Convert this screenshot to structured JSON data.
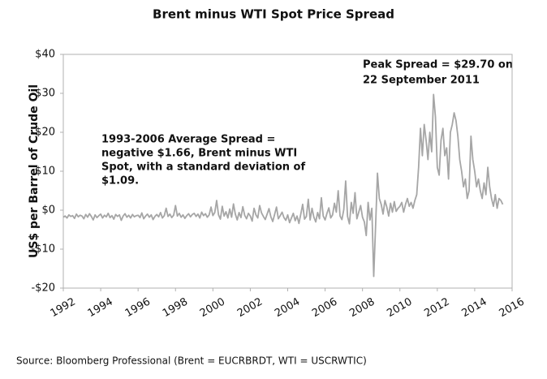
{
  "chart_data": {
    "type": "line",
    "title": "Brent minus WTI Spot Price Spread",
    "ylabel": "US$ per Barrel of Crude Oil",
    "source": "Source: Bloomberg Professional (Brent = EUCRBRDT, WTI = USCRWTIC)",
    "annotations": [
      "Peak Spread = $29.70 on",
      "22 September 2011",
      "1993-2006 Average Spread =",
      "negative $1.66, Brent minus WTI",
      "Spot, with a standard deviation of",
      "$1.09."
    ],
    "xlim": [
      1992,
      2016
    ],
    "xticks": [
      1992,
      1994,
      1996,
      1998,
      2000,
      2002,
      2004,
      2006,
      2008,
      2010,
      2012,
      2014,
      2016
    ],
    "ylim": [
      -20,
      40
    ],
    "yticks": [
      {
        "value": 40,
        "label": "$40"
      },
      {
        "value": 30,
        "label": "$30"
      },
      {
        "value": 20,
        "label": "$20"
      },
      {
        "value": 10,
        "label": "$10"
      },
      {
        "value": 0,
        "label": "$0"
      },
      {
        "value": -10,
        "label": "-$10"
      },
      {
        "value": -20,
        "label": "-$20"
      }
    ],
    "grid": false,
    "x": [
      1992.0,
      1992.1,
      1992.2,
      1992.3,
      1992.4,
      1992.5,
      1992.6,
      1992.7,
      1992.8,
      1992.9,
      1993.0,
      1993.1,
      1993.2,
      1993.3,
      1993.4,
      1993.5,
      1993.6,
      1993.7,
      1993.8,
      1993.9,
      1994.0,
      1994.1,
      1994.2,
      1994.3,
      1994.4,
      1994.5,
      1994.6,
      1994.7,
      1994.8,
      1994.9,
      1995.0,
      1995.1,
      1995.2,
      1995.3,
      1995.4,
      1995.5,
      1995.6,
      1995.7,
      1995.8,
      1995.9,
      1996.0,
      1996.1,
      1996.2,
      1996.3,
      1996.4,
      1996.5,
      1996.6,
      1996.7,
      1996.8,
      1996.9,
      1997.0,
      1997.1,
      1997.2,
      1997.3,
      1997.4,
      1997.5,
      1997.6,
      1997.7,
      1997.8,
      1997.9,
      1998.0,
      1998.1,
      1998.2,
      1998.3,
      1998.4,
      1998.5,
      1998.6,
      1998.7,
      1998.8,
      1998.9,
      1999.0,
      1999.1,
      1999.2,
      1999.3,
      1999.4,
      1999.5,
      1999.6,
      1999.7,
      1999.8,
      1999.9,
      2000.0,
      2000.1,
      2000.2,
      2000.3,
      2000.4,
      2000.5,
      2000.6,
      2000.7,
      2000.8,
      2000.9,
      2001.0,
      2001.1,
      2001.2,
      2001.3,
      2001.4,
      2001.5,
      2001.6,
      2001.7,
      2001.8,
      2001.9,
      2002.0,
      2002.1,
      2002.2,
      2002.3,
      2002.4,
      2002.5,
      2002.6,
      2002.7,
      2002.8,
      2002.9,
      2003.0,
      2003.1,
      2003.2,
      2003.3,
      2003.4,
      2003.5,
      2003.6,
      2003.7,
      2003.8,
      2003.9,
      2004.0,
      2004.1,
      2004.2,
      2004.3,
      2004.4,
      2004.5,
      2004.6,
      2004.7,
      2004.8,
      2004.9,
      2005.0,
      2005.1,
      2005.2,
      2005.3,
      2005.4,
      2005.5,
      2005.6,
      2005.7,
      2005.8,
      2005.9,
      2006.0,
      2006.1,
      2006.2,
      2006.3,
      2006.4,
      2006.5,
      2006.6,
      2006.7,
      2006.8,
      2006.9,
      2007.0,
      2007.1,
      2007.2,
      2007.3,
      2007.4,
      2007.5,
      2007.6,
      2007.7,
      2007.8,
      2007.9,
      2008.0,
      2008.1,
      2008.2,
      2008.3,
      2008.4,
      2008.5,
      2008.6,
      2008.7,
      2008.8,
      2008.9,
      2009.0,
      2009.1,
      2009.2,
      2009.3,
      2009.4,
      2009.5,
      2009.6,
      2009.7,
      2009.8,
      2009.9,
      2010.0,
      2010.1,
      2010.2,
      2010.3,
      2010.4,
      2010.5,
      2010.6,
      2010.7,
      2010.8,
      2010.9,
      2011.0,
      2011.1,
      2011.2,
      2011.3,
      2011.4,
      2011.5,
      2011.6,
      2011.7,
      2011.8,
      2011.9,
      2012.0,
      2012.1,
      2012.2,
      2012.3,
      2012.4,
      2012.5,
      2012.6,
      2012.7,
      2012.8,
      2012.9,
      2013.0,
      2013.1,
      2013.2,
      2013.3,
      2013.4,
      2013.5,
      2013.6,
      2013.7,
      2013.8,
      2013.9,
      2014.0,
      2014.1,
      2014.2,
      2014.3,
      2014.4,
      2014.5,
      2014.6,
      2014.7,
      2014.8,
      2014.9,
      2015.0,
      2015.1,
      2015.2,
      2015.3,
      2015.4,
      2015.5
    ],
    "series": [
      {
        "name": "Brent minus WTI",
        "color": "#a6a6a6",
        "values": [
          -1.8,
          -1.5,
          -2.0,
          -1.2,
          -1.6,
          -1.4,
          -2.1,
          -1.0,
          -1.7,
          -1.3,
          -1.5,
          -2.2,
          -1.1,
          -1.8,
          -0.9,
          -1.6,
          -2.5,
          -1.2,
          -1.9,
          -1.4,
          -1.0,
          -2.0,
          -1.3,
          -1.7,
          -0.8,
          -1.9,
          -1.4,
          -2.3,
          -1.1,
          -1.6,
          -1.2,
          -2.6,
          -1.5,
          -0.9,
          -1.8,
          -1.3,
          -2.0,
          -1.1,
          -1.7,
          -1.4,
          -1.3,
          -1.9,
          -0.7,
          -2.2,
          -1.5,
          -1.0,
          -1.8,
          -1.2,
          -2.4,
          -1.6,
          -1.1,
          -1.7,
          -0.6,
          -2.0,
          -1.4,
          0.5,
          -1.6,
          -1.0,
          -1.9,
          -1.3,
          1.2,
          -1.5,
          -0.8,
          -1.8,
          -1.2,
          -2.1,
          -1.4,
          -0.9,
          -1.7,
          -1.1,
          -0.8,
          -1.6,
          -1.0,
          -2.0,
          -0.5,
          -1.4,
          -0.9,
          -1.8,
          -1.2,
          0.8,
          -1.4,
          -0.6,
          2.5,
          -1.2,
          -2.3,
          1.0,
          -1.5,
          -0.4,
          -2.0,
          0.3,
          -1.8,
          1.6,
          -1.0,
          -2.5,
          -0.6,
          -1.9,
          0.9,
          -1.3,
          -2.2,
          -0.8,
          -1.5,
          -2.8,
          0.5,
          -1.2,
          -2.0,
          1.2,
          -0.7,
          -1.6,
          -2.4,
          -1.0,
          0.4,
          -1.7,
          -2.9,
          -1.1,
          0.8,
          -2.2,
          -1.4,
          -0.5,
          -1.9,
          -2.6,
          -1.2,
          -3.2,
          -2.0,
          -0.8,
          -2.7,
          -1.5,
          -3.4,
          -1.0,
          1.5,
          -2.3,
          -1.6,
          2.8,
          -2.5,
          0.5,
          -1.8,
          -3.0,
          -0.6,
          -2.2,
          3.2,
          -1.5,
          -2.5,
          -0.8,
          0.6,
          -2.0,
          -1.2,
          1.8,
          -0.5,
          5.0,
          -1.5,
          -2.4,
          0.2,
          7.5,
          -1.6,
          -3.5,
          2.0,
          -0.8,
          4.5,
          -2.2,
          -0.5,
          1.2,
          -1.8,
          -3.0,
          -6.5,
          2.0,
          -2.5,
          0.5,
          -17.0,
          -4.0,
          9.5,
          3.0,
          1.5,
          -1.0,
          2.5,
          0.8,
          -1.5,
          1.8,
          -0.5,
          2.2,
          -0.3,
          0.5,
          1.0,
          2.0,
          -0.5,
          1.5,
          3.0,
          1.0,
          2.0,
          0.5,
          2.5,
          4.0,
          11.0,
          21.0,
          14.0,
          22.0,
          18.0,
          13.0,
          20.0,
          15.0,
          29.7,
          24.0,
          11.0,
          9.0,
          18.0,
          21.0,
          14.0,
          16.0,
          8.0,
          20.0,
          22.0,
          25.0,
          23.0,
          19.0,
          13.0,
          10.0,
          6.0,
          8.0,
          3.0,
          5.0,
          19.0,
          13.0,
          10.0,
          6.0,
          8.0,
          5.0,
          3.0,
          7.0,
          4.0,
          11.0,
          6.0,
          3.0,
          1.0,
          4.0,
          0.5,
          3.0,
          2.5,
          1.5
        ]
      }
    ]
  }
}
